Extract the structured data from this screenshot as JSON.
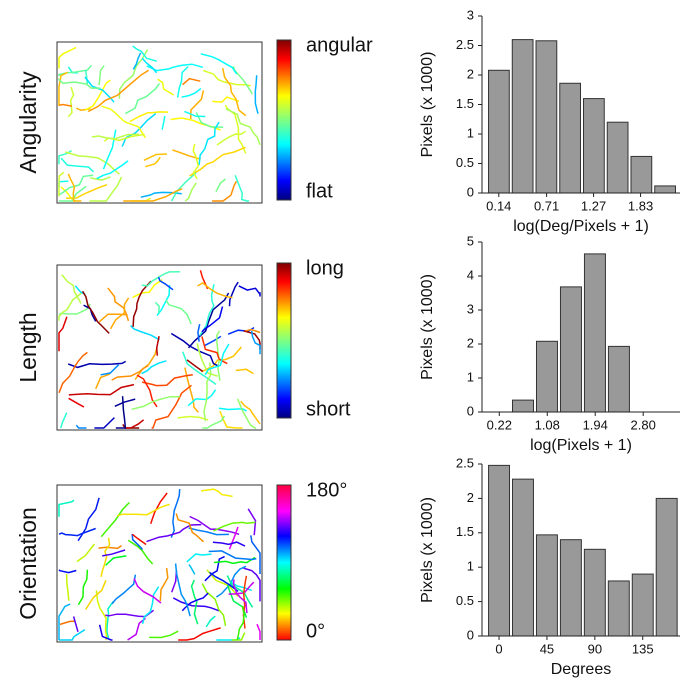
{
  "chart_data": [
    {
      "type": "histogram",
      "row_label": "Angularity",
      "colorbar_top": "angular",
      "colorbar_bottom": "flat",
      "colormap": "jet",
      "y_label": "Pixels (x 1000)",
      "x_label": "log(Deg/Pixels + 1)",
      "bins": [
        0,
        0.283,
        0.566,
        0.849,
        1.132,
        1.415,
        1.698,
        1.981,
        2.264
      ],
      "values": [
        2.08,
        2.6,
        2.58,
        1.86,
        1.6,
        1.2,
        0.62,
        0.12
      ],
      "color": "#999999",
      "xlim": [
        -0.06,
        2.3
      ],
      "xticks": [
        0.14,
        0.71,
        1.27,
        1.83
      ],
      "ylim": [
        0,
        3
      ],
      "yticks": [
        0,
        0.5,
        1,
        1.5,
        2,
        2.5,
        3
      ]
    },
    {
      "type": "histogram",
      "row_label": "Length",
      "colorbar_top": "long",
      "colorbar_bottom": "short",
      "colormap": "jet",
      "y_label": "Pixels (x 1000)",
      "x_label": "log(Pixels + 1)",
      "bins": [
        0,
        0.43,
        0.86,
        1.29,
        1.72,
        2.15,
        2.58,
        3.01
      ],
      "values": [
        0,
        0.35,
        2.08,
        3.68,
        4.65,
        1.93,
        0
      ],
      "color": "#999999",
      "xlim": [
        -0.09,
        3.46
      ],
      "xticks": [
        0.22,
        1.08,
        1.94,
        {
          "value": 2.8,
          "label": "2.80"
        }
      ],
      "ylim": [
        0,
        5
      ],
      "yticks": [
        0,
        1,
        2,
        3,
        4,
        5
      ]
    },
    {
      "type": "histogram",
      "row_label": "Orientation",
      "colorbar_top": "180°",
      "colorbar_bottom": "0°",
      "colormap": "hsv",
      "y_label": "Pixels (x 1000)",
      "x_label": "Degrees",
      "bins": [
        -11.25,
        11.25,
        33.75,
        56.25,
        78.75,
        101.25,
        123.75,
        146.25,
        168.75
      ],
      "values": [
        2.48,
        2.28,
        1.47,
        1.4,
        1.26,
        0.8,
        0.9,
        2.0
      ],
      "color": "#999999",
      "xlim": [
        -16,
        170
      ],
      "xticks": [
        0,
        45,
        90,
        135
      ],
      "ylim": [
        0,
        2.5
      ],
      "yticks": [
        0,
        0.5,
        1,
        1.5,
        2,
        2.5
      ]
    }
  ]
}
